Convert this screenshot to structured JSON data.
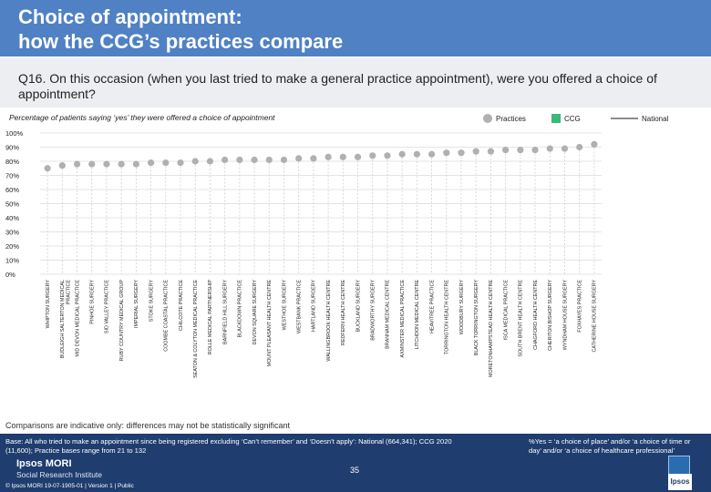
{
  "header": {
    "title": "Choice of appointment:\nhow the CCG’s practices compare"
  },
  "question": "Q16. On this occasion (when you last tried to make a general practice appointment), were you offered a choice of appointment?",
  "subtitle": "Percentage of patients saying ‘yes’ they were offered a choice of appointment",
  "legend": {
    "practices": "Practices",
    "ccg": "CCG",
    "national": "National"
  },
  "colors": {
    "practice_dot": "#b0b0b0",
    "ccg": "#3cb878",
    "national_line": "#8c8c8c",
    "header": "#4f81c4",
    "footer": "#1f3d6e"
  },
  "chart_data": {
    "type": "scatter",
    "title": "Percentage of patients saying ‘yes’ they were offered a choice of appointment",
    "ylim": [
      0,
      100
    ],
    "yticks": [
      "0%",
      "10%",
      "20%",
      "30%",
      "40%",
      "50%",
      "60%",
      "70%",
      "80%",
      "90%",
      "100%"
    ],
    "categories": [
      "WHIPTON SURGERY",
      "BUDLEIGH SALTERTON MEDICAL PRACTICE",
      "MID DEVON MEDICAL PRACTICE",
      "PINHOE SURGERY",
      "SID VALLEY PRACTICE",
      "RUBY COUNTRY MEDICAL GROUP",
      "IMPERIAL SURGERY",
      "STOKE SURGERY",
      "COOMBE COASTAL PRACTICE",
      "CHILCOTE PRACTICE",
      "SEATON & COLYTON MEDICAL PRACTICE",
      "ROLLE MEDICAL PARTNERSHIP",
      "BARNFIELD HILL SURGERY",
      "BLACKDOWN PRACTICE",
      "DEVON SQUARE SURGERY",
      "MOUNT PLEASANT HEALTH CENTRE",
      "WESTHOE SURGERY",
      "WESTBANK PRACTICE",
      "HARTLAND SURGERY",
      "WALLINGBROOK HEALTH CENTRE",
      "REDFERN HEALTH CENTRE",
      "BUCKLAND SURGERY",
      "BRADWORTHY SURGERY",
      "BRANNAM MEDICAL CENTRE",
      "AXMINSTER MEDICAL PRACTICE",
      "LITCHDON MEDICAL CENTRE",
      "HEAVITREE PRACTICE",
      "TORRINGTON HEALTH CENTRE",
      "WOODBURY SURGERY",
      "BLACK TORRINGTON SURGERY",
      "MORETONHAMPSTEAD HEALTH CENTRE",
      "ISCA MEDICAL PRACTICE",
      "SOUTH BRENT HEALTH CENTRE",
      "CHAGFORD HEALTH CENTRE",
      "CHERITON BISHOP SURGERY",
      "WYNDHAM HOUSE SURGERY",
      "FOXHAYES PRACTICE",
      "CATHERINE HOUSE SURGERY"
    ],
    "values": [
      75,
      77,
      78,
      78,
      78,
      78,
      78,
      79,
      79,
      79,
      80,
      80,
      81,
      81,
      81,
      81,
      81,
      82,
      82,
      83,
      83,
      83,
      84,
      84,
      85,
      85,
      85,
      86,
      86,
      87,
      87,
      88,
      88,
      88,
      89,
      89,
      90,
      92
    ],
    "highlight_ccg": []
  },
  "caveat": "Comparisons are indicative only: differences may not be statistically significant",
  "footer": {
    "base": "Base: All who tried to make an appointment since being registered excluding ‘Can’t remember’ and ‘Doesn’t apply’: National (664,341); CCG 2020 (11,600); Practice bases range from 21 to 132",
    "note": "%Yes = ‘a choice of place’ and/or ‘a choice of time or day’ and/or ‘a choice of healthcare professional’",
    "brand": "Ipsos MORI",
    "brand_sub": "Social Research Institute",
    "legal": "© Ipsos MORI     19-07-1905-01 | Version 1 | Public",
    "page": "35",
    "logo_text": "Ipsos"
  }
}
